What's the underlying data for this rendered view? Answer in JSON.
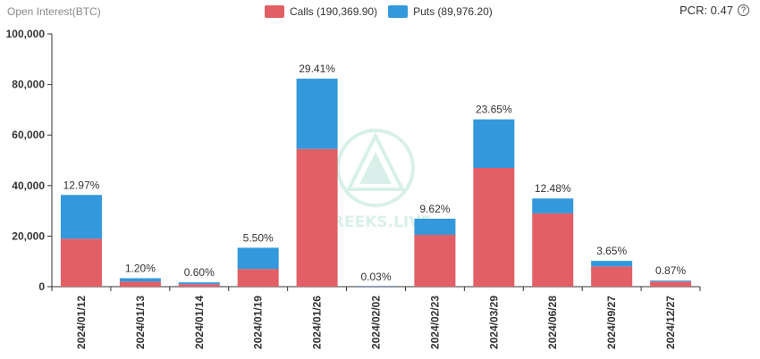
{
  "header": {
    "title": "Open Interest(BTC)",
    "pcr_label": "PCR: 0.47",
    "help_glyph": "?"
  },
  "legend": {
    "calls_label": "Calls (190,369.90)",
    "puts_label": "Puts (89,976.20)"
  },
  "watermark": {
    "text": "GREEKS.LIVE"
  },
  "colors": {
    "calls": "#e25f66",
    "puts": "#3398dc",
    "axis": "#333333",
    "text": "#333333"
  },
  "chart_data": {
    "type": "bar",
    "stacked": true,
    "categories": [
      "2024/01/12",
      "2024/01/13",
      "2024/01/14",
      "2024/01/19",
      "2024/01/26",
      "2024/02/02",
      "2024/02/23",
      "2024/03/29",
      "2024/06/28",
      "2024/09/27",
      "2024/12/27"
    ],
    "series": [
      {
        "name": "Calls (190,369.90)",
        "values": [
          19000,
          2000,
          1000,
          7000,
          54500,
          50,
          20500,
          47000,
          29000,
          8000,
          2000
        ]
      },
      {
        "name": "Puts (89,976.20)",
        "values": [
          17300,
          1350,
          700,
          8400,
          27800,
          30,
          6400,
          19200,
          5900,
          2200,
          400
        ]
      }
    ],
    "data_labels": [
      "12.97%",
      "1.20%",
      "0.60%",
      "5.50%",
      "29.41%",
      "0.03%",
      "9.62%",
      "23.65%",
      "12.48%",
      "3.65%",
      "0.87%"
    ],
    "ylim": [
      0,
      100000
    ],
    "yticks": [
      0,
      20000,
      40000,
      60000,
      80000,
      100000
    ],
    "ytick_labels": [
      "0",
      "20,000",
      "40,000",
      "60,000",
      "80,000",
      "100,000"
    ],
    "title": "Open Interest(BTC)",
    "xlabel": "",
    "ylabel": "",
    "legend_position": "top-center",
    "grid": false
  }
}
